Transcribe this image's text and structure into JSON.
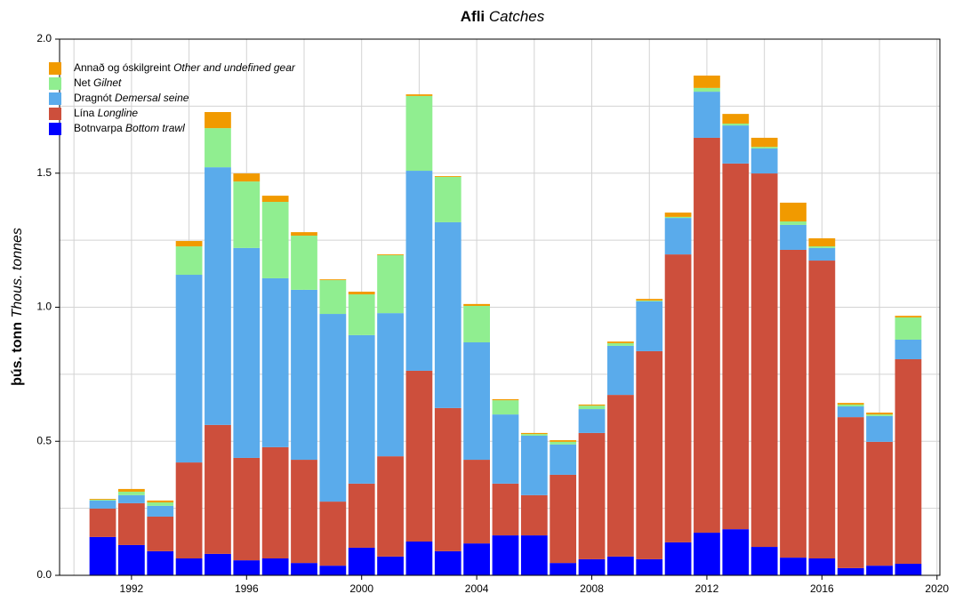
{
  "chart_data": {
    "type": "stacked-bar",
    "title": "Afli",
    "title_en": "Catches",
    "ylabel": "þús. tonn",
    "ylabel_en": "Thous. tonnes",
    "x": [
      1991,
      1992,
      1993,
      1994,
      1995,
      1996,
      1997,
      1998,
      1999,
      2000,
      2001,
      2002,
      2003,
      2004,
      2005,
      2006,
      2007,
      2008,
      2009,
      2010,
      2011,
      2012,
      2013,
      2014,
      2015,
      2016,
      2017,
      2018,
      2019
    ],
    "series": [
      {
        "name": "Botnvarpa",
        "name_en": "Bottom trawl",
        "color": "#0000ff",
        "values": [
          0.143,
          0.113,
          0.09,
          0.063,
          0.08,
          0.056,
          0.063,
          0.046,
          0.036,
          0.103,
          0.07,
          0.126,
          0.09,
          0.119,
          0.149,
          0.149,
          0.046,
          0.06,
          0.07,
          0.06,
          0.123,
          0.159,
          0.172,
          0.106,
          0.066,
          0.063,
          0.027,
          0.036,
          0.043
        ]
      },
      {
        "name": "Lína",
        "name_en": "Longline",
        "color": "#cd4f3c",
        "values": [
          0.106,
          0.156,
          0.129,
          0.358,
          0.481,
          0.382,
          0.415,
          0.385,
          0.239,
          0.239,
          0.374,
          0.637,
          0.534,
          0.312,
          0.193,
          0.15,
          0.329,
          0.471,
          0.603,
          0.776,
          1.074,
          1.473,
          1.364,
          1.393,
          1.148,
          1.111,
          0.563,
          0.462,
          0.763
        ]
      },
      {
        "name": "Dragnót",
        "name_en": "Demersal seine",
        "color": "#5aabeb",
        "values": [
          0.03,
          0.03,
          0.04,
          0.7,
          0.961,
          0.783,
          0.63,
          0.634,
          0.7,
          0.554,
          0.534,
          0.746,
          0.693,
          0.438,
          0.258,
          0.222,
          0.113,
          0.089,
          0.183,
          0.186,
          0.136,
          0.172,
          0.142,
          0.093,
          0.093,
          0.047,
          0.04,
          0.096,
          0.073
        ]
      },
      {
        "name": "Net",
        "name_en": "Gilnet",
        "color": "#90ee90",
        "values": [
          0.003,
          0.013,
          0.013,
          0.106,
          0.146,
          0.248,
          0.285,
          0.202,
          0.126,
          0.152,
          0.216,
          0.279,
          0.169,
          0.136,
          0.053,
          0.006,
          0.01,
          0.013,
          0.01,
          0.003,
          0.004,
          0.014,
          0.007,
          0.006,
          0.013,
          0.006,
          0.007,
          0.006,
          0.083
        ]
      },
      {
        "name": "Annað og óskilgreint",
        "name_en": "Other and undefined gear",
        "color": "#f19a00",
        "values": [
          0.003,
          0.01,
          0.007,
          0.02,
          0.06,
          0.03,
          0.023,
          0.013,
          0.003,
          0.01,
          0.003,
          0.006,
          0.003,
          0.007,
          0.004,
          0.004,
          0.006,
          0.004,
          0.006,
          0.006,
          0.016,
          0.046,
          0.036,
          0.034,
          0.07,
          0.03,
          0.006,
          0.007,
          0.006
        ]
      }
    ],
    "xlim": [
      1989.5,
      2020.1
    ],
    "xticks": [
      1992,
      1996,
      2000,
      2004,
      2008,
      2012,
      2016,
      2020
    ],
    "x_minor_grid": [
      1990,
      1994,
      1998,
      2002,
      2006,
      2010,
      2014,
      2018
    ],
    "ylim": [
      0,
      2
    ],
    "yticks": [
      {
        "value": 0,
        "label": "0.0"
      },
      0.5,
      {
        "value": 1,
        "label": "1.0"
      },
      1.5,
      {
        "value": 2,
        "label": "2.0"
      }
    ],
    "y_minor_grid": [
      0.25,
      0.75,
      1.25,
      1.75
    ],
    "grid": true,
    "legend": "top-left"
  }
}
